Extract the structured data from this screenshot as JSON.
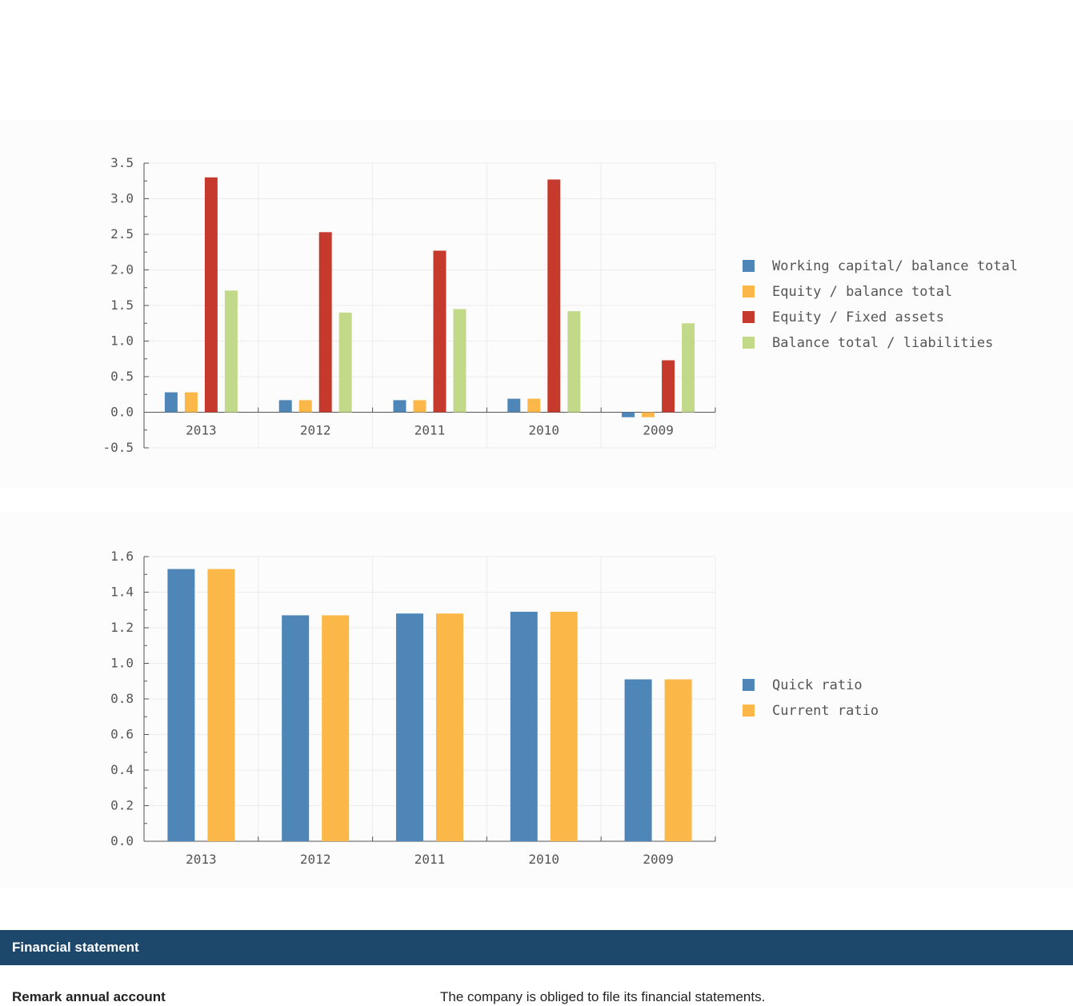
{
  "chart_data": [
    {
      "type": "bar",
      "categories": [
        "2013",
        "2012",
        "2011",
        "2010",
        "2009"
      ],
      "series": [
        {
          "name": "Working capital/ balance total",
          "color": "#4f86b8",
          "values": [
            0.28,
            0.17,
            0.17,
            0.19,
            -0.07
          ]
        },
        {
          "name": "Equity / balance total",
          "color": "#fbb848",
          "values": [
            0.28,
            0.17,
            0.17,
            0.19,
            -0.07
          ]
        },
        {
          "name": "Equity / Fixed assets",
          "color": "#c63a2e",
          "values": [
            3.3,
            2.53,
            2.27,
            3.27,
            0.73
          ]
        },
        {
          "name": "Balance total / liabilities",
          "color": "#c3d98a",
          "values": [
            1.71,
            1.4,
            1.45,
            1.42,
            1.25
          ]
        }
      ],
      "ylim": [
        -0.5,
        3.5
      ],
      "yticks": [
        "-0.5",
        "0.0",
        "0.5",
        "1.0",
        "1.5",
        "2.0",
        "2.5",
        "3.0",
        "3.5"
      ],
      "grid": true,
      "legend": "right"
    },
    {
      "type": "bar",
      "categories": [
        "2013",
        "2012",
        "2011",
        "2010",
        "2009"
      ],
      "series": [
        {
          "name": "Quick ratio",
          "color": "#4f86b8",
          "values": [
            1.53,
            1.27,
            1.28,
            1.29,
            0.91
          ]
        },
        {
          "name": "Current ratio",
          "color": "#fbb848",
          "values": [
            1.53,
            1.27,
            1.28,
            1.29,
            0.91
          ]
        }
      ],
      "ylim": [
        0,
        1.6
      ],
      "yticks": [
        "0.0",
        "0.2",
        "0.4",
        "0.6",
        "0.8",
        "1.0",
        "1.2",
        "1.4",
        "1.6"
      ],
      "grid": true,
      "legend": "right"
    }
  ],
  "section": {
    "title": "Financial statement"
  },
  "remark": {
    "label": "Remark annual account",
    "value": "The company is obliged to file its financial statements."
  }
}
